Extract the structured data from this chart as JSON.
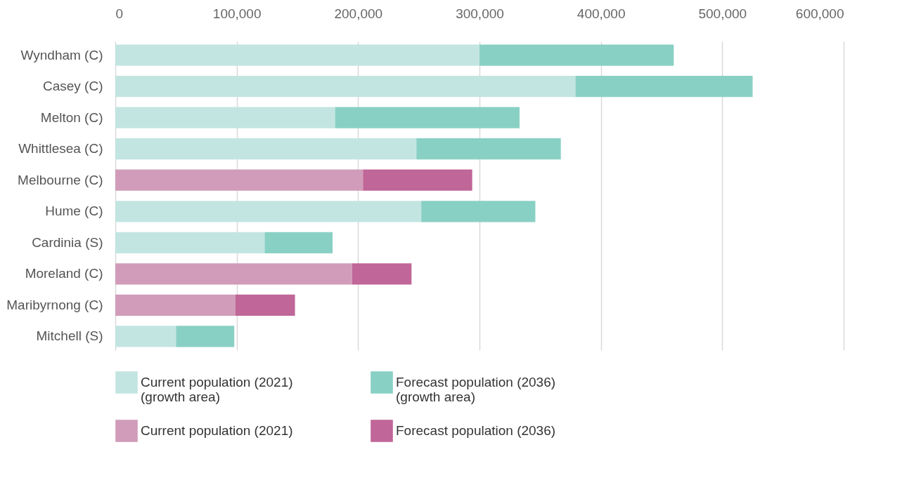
{
  "chart_data": {
    "type": "bar",
    "orientation": "horizontal",
    "stacked": true,
    "categories": [
      "Wyndham (C)",
      "Casey (C)",
      "Melton (C)",
      "Whittlesea (C)",
      "Melbourne (C)",
      "Hume (C)",
      "Cardinia (S)",
      "Moreland (C)",
      "Maribyrnong (C)",
      "Mitchell (S)"
    ],
    "series": [
      {
        "name": "Current population (2021)\n(growth area)",
        "color": "#c3e5e1",
        "values": [
          300000,
          379000,
          181000,
          248000,
          null,
          252000,
          123000,
          null,
          null,
          50000
        ]
      },
      {
        "name": "Forecast population (2036)\n(growth area)",
        "color": "#89d0c4",
        "values": [
          160000,
          146000,
          152000,
          119000,
          null,
          94000,
          56000,
          null,
          null,
          48000
        ]
      },
      {
        "name": "Current population (2021)",
        "color": "#d09cb9",
        "values": [
          null,
          null,
          null,
          null,
          204000,
          null,
          null,
          195000,
          99000,
          null
        ]
      },
      {
        "name": "Forecast population (2036)",
        "color": "#c06698",
        "values": [
          null,
          null,
          null,
          null,
          90000,
          null,
          null,
          49000,
          49000,
          null
        ]
      }
    ],
    "xlim": [
      0,
      600000
    ],
    "xticks": [
      0,
      {
        "value": 100000,
        "label": "100,000"
      },
      {
        "value": 200000,
        "label": "200,000"
      },
      {
        "value": 300000,
        "label": "300,000"
      },
      {
        "value": 400000,
        "label": "400,000"
      },
      {
        "value": 500000,
        "label": "500,000"
      },
      {
        "value": 600000,
        "label": "600,000"
      }
    ],
    "grid": "x",
    "legend": "bottom"
  }
}
